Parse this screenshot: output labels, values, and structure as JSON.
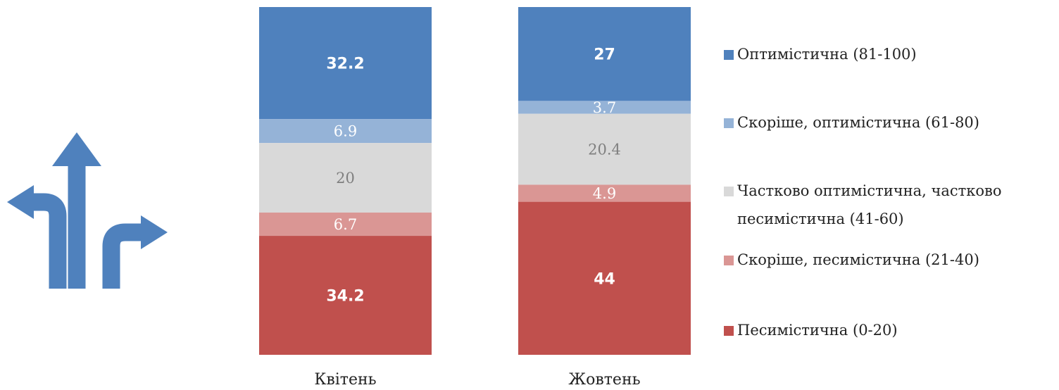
{
  "chart_data": {
    "type": "bar",
    "stacked": true,
    "categories": [
      "Квітень",
      "Жовтень"
    ],
    "series": [
      {
        "name": "Оптимістична (81-100)",
        "color": "#4f81bd",
        "values": [
          32.2,
          27
        ]
      },
      {
        "name": "Скоріше, оптимістична (61-80)",
        "color": "#95b3d7",
        "values": [
          6.9,
          3.7
        ]
      },
      {
        "name": "Частково оптимістична, частково песимістична (41-60)",
        "color": "#d9d9d9",
        "values": [
          20,
          20.4
        ]
      },
      {
        "name": "Скоріше, песимістична (21-40)",
        "color": "#da9694",
        "values": [
          6.7,
          4.9
        ]
      },
      {
        "name": "Песимістична (0-20)",
        "color": "#c0504d",
        "values": [
          34.2,
          44
        ]
      }
    ],
    "legend": "right"
  }
}
